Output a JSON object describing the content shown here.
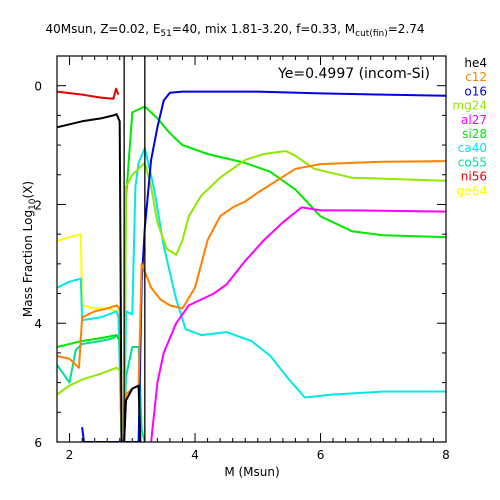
{
  "chart_data": {
    "type": "line",
    "title": {
      "prefix": "40Msun, Z=0.02, E",
      "e_sub": "51",
      "mid": "=40, mix 1.81-3.20, f=0.33, M",
      "m_sub": "cut(fin)",
      "suffix": "=2.74"
    },
    "xlabel": "M (Msun)",
    "ylabel": {
      "before": "Mass Fraction Log",
      "sub": "10",
      "after": "(X)"
    },
    "annotation": "Ye=0.4997 (incom-Si)",
    "xlim": [
      1.8,
      8.0
    ],
    "ylim": [
      -6.0,
      0.5
    ],
    "x_major_ticks": [
      2,
      4,
      6,
      8
    ],
    "x_tick_labels": [
      "2",
      "4",
      "6",
      "8"
    ],
    "y_major_ticks": [
      0,
      -2,
      -4,
      -6
    ],
    "y_tick_labels": [
      "0",
      "2",
      "4",
      "6"
    ],
    "vertical_markers": [
      2.87,
      3.2
    ],
    "legend_position": "right-outside",
    "series": [
      {
        "name": "ge64",
        "color": "#ffff00",
        "points": [
          [
            1.8,
            -2.62
          ],
          [
            2.0,
            -2.55
          ],
          [
            2.18,
            -2.5
          ],
          [
            2.2,
            -3.7
          ],
          [
            2.4,
            -3.75
          ],
          [
            2.6,
            -3.75
          ],
          [
            2.75,
            -3.8
          ],
          [
            2.8,
            -3.72
          ]
        ]
      },
      {
        "name": "ni56",
        "color": "#e80000",
        "points": [
          [
            1.8,
            -0.1
          ],
          [
            2.2,
            -0.15
          ],
          [
            2.5,
            -0.2
          ],
          [
            2.7,
            -0.22
          ],
          [
            2.74,
            -0.05
          ],
          [
            2.78,
            -0.15
          ]
        ]
      },
      {
        "name": "co55",
        "color": "#00e090",
        "points": [
          [
            1.8,
            -4.7
          ],
          [
            2.0,
            -5.0
          ],
          [
            2.1,
            -4.45
          ],
          [
            2.2,
            -4.35
          ],
          [
            2.5,
            -4.3
          ],
          [
            2.7,
            -4.25
          ],
          [
            2.75,
            -4.2
          ],
          [
            2.8,
            -4.3
          ],
          [
            2.83,
            -6.0
          ],
          [
            2.87,
            -6.0
          ],
          [
            2.9,
            -4.9
          ],
          [
            3.0,
            -4.4
          ],
          [
            3.1,
            -4.4
          ],
          [
            3.15,
            -5.8
          ],
          [
            3.2,
            -6.0
          ]
        ]
      },
      {
        "name": "ca40",
        "color": "#00e8e8",
        "points": [
          [
            1.8,
            -3.4
          ],
          [
            2.0,
            -3.3
          ],
          [
            2.18,
            -3.25
          ],
          [
            2.2,
            -3.95
          ],
          [
            2.5,
            -3.9
          ],
          [
            2.75,
            -3.8
          ],
          [
            2.78,
            -3.9
          ],
          [
            2.83,
            -6.0
          ],
          [
            2.87,
            -6.0
          ],
          [
            2.9,
            -3.8
          ],
          [
            3.0,
            -3.85
          ],
          [
            3.05,
            -1.7
          ],
          [
            3.1,
            -1.3
          ],
          [
            3.2,
            -1.05
          ],
          [
            3.35,
            -1.75
          ],
          [
            3.5,
            -2.7
          ],
          [
            3.7,
            -3.6
          ],
          [
            3.85,
            -4.1
          ],
          [
            4.1,
            -4.2
          ],
          [
            4.5,
            -4.15
          ],
          [
            4.9,
            -4.3
          ],
          [
            5.2,
            -4.55
          ],
          [
            5.5,
            -4.95
          ],
          [
            5.75,
            -5.25
          ],
          [
            6.2,
            -5.2
          ],
          [
            7.0,
            -5.15
          ],
          [
            8.0,
            -5.15
          ]
        ]
      },
      {
        "name": "si28",
        "color": "#00e800",
        "points": [
          [
            1.8,
            -4.4
          ],
          [
            2.2,
            -4.3
          ],
          [
            2.5,
            -4.25
          ],
          [
            2.75,
            -4.2
          ],
          [
            2.8,
            -4.3
          ],
          [
            2.83,
            -6.0
          ],
          [
            2.87,
            -6.0
          ],
          [
            2.9,
            -1.9
          ],
          [
            3.0,
            -0.45
          ],
          [
            3.2,
            -0.35
          ],
          [
            3.4,
            -0.55
          ],
          [
            3.6,
            -0.8
          ],
          [
            3.8,
            -1.0
          ],
          [
            4.2,
            -1.15
          ],
          [
            4.8,
            -1.3
          ],
          [
            5.2,
            -1.45
          ],
          [
            5.6,
            -1.75
          ],
          [
            6.0,
            -2.2
          ],
          [
            6.5,
            -2.45
          ],
          [
            7.0,
            -2.52
          ],
          [
            8.0,
            -2.55
          ]
        ]
      },
      {
        "name": "al27",
        "color": "#ff00ff",
        "points": [
          [
            3.3,
            -6.0
          ],
          [
            3.4,
            -5.0
          ],
          [
            3.5,
            -4.5
          ],
          [
            3.7,
            -4.0
          ],
          [
            3.9,
            -3.7
          ],
          [
            4.1,
            -3.6
          ],
          [
            4.3,
            -3.5
          ],
          [
            4.5,
            -3.35
          ],
          [
            4.8,
            -2.95
          ],
          [
            5.1,
            -2.6
          ],
          [
            5.4,
            -2.3
          ],
          [
            5.7,
            -2.05
          ],
          [
            6.0,
            -2.1
          ],
          [
            6.5,
            -2.1
          ],
          [
            8.0,
            -2.12
          ]
        ]
      },
      {
        "name": "mg24",
        "color": "#90e800",
        "points": [
          [
            1.8,
            -5.2
          ],
          [
            2.0,
            -5.05
          ],
          [
            2.2,
            -4.95
          ],
          [
            2.5,
            -4.85
          ],
          [
            2.75,
            -4.75
          ],
          [
            2.8,
            -4.8
          ],
          [
            2.83,
            -6.0
          ],
          [
            2.87,
            -6.0
          ],
          [
            2.9,
            -1.7
          ],
          [
            3.0,
            -1.5
          ],
          [
            3.1,
            -1.4
          ],
          [
            3.2,
            -1.3
          ],
          [
            3.3,
            -1.7
          ],
          [
            3.4,
            -2.3
          ],
          [
            3.55,
            -2.75
          ],
          [
            3.7,
            -2.85
          ],
          [
            3.8,
            -2.6
          ],
          [
            3.9,
            -2.2
          ],
          [
            4.1,
            -1.85
          ],
          [
            4.4,
            -1.55
          ],
          [
            4.8,
            -1.25
          ],
          [
            5.1,
            -1.15
          ],
          [
            5.45,
            -1.1
          ],
          [
            5.6,
            -1.18
          ],
          [
            5.9,
            -1.4
          ],
          [
            6.5,
            -1.55
          ],
          [
            8.0,
            -1.6
          ]
        ]
      },
      {
        "name": "o16",
        "color": "#0000e8",
        "points": [
          [
            2.2,
            -5.75
          ],
          [
            2.23,
            -6.0
          ],
          [
            3.1,
            -6.0
          ],
          [
            3.15,
            -3.3
          ],
          [
            3.2,
            -2.4
          ],
          [
            3.3,
            -1.25
          ],
          [
            3.4,
            -0.7
          ],
          [
            3.5,
            -0.25
          ],
          [
            3.6,
            -0.12
          ],
          [
            3.8,
            -0.1
          ],
          [
            5.0,
            -0.1
          ],
          [
            6.0,
            -0.13
          ],
          [
            7.0,
            -0.15
          ],
          [
            8.0,
            -0.17
          ]
        ]
      },
      {
        "name": "c12",
        "color": "#ff8000",
        "points": [
          [
            1.8,
            -4.55
          ],
          [
            2.0,
            -4.6
          ],
          [
            2.15,
            -4.75
          ],
          [
            2.2,
            -3.9
          ],
          [
            2.4,
            -3.8
          ],
          [
            2.6,
            -3.75
          ],
          [
            2.75,
            -3.7
          ],
          [
            2.8,
            -3.75
          ],
          [
            2.83,
            -6.0
          ],
          [
            2.87,
            -6.0
          ],
          [
            2.9,
            -5.2
          ],
          [
            3.0,
            -5.1
          ],
          [
            3.1,
            -5.05
          ],
          [
            3.15,
            -3.0
          ],
          [
            3.3,
            -3.4
          ],
          [
            3.45,
            -3.6
          ],
          [
            3.6,
            -3.7
          ],
          [
            3.8,
            -3.75
          ],
          [
            4.0,
            -3.4
          ],
          [
            4.2,
            -2.6
          ],
          [
            4.4,
            -2.2
          ],
          [
            4.6,
            -2.05
          ],
          [
            4.8,
            -1.95
          ],
          [
            5.0,
            -1.8
          ],
          [
            5.3,
            -1.6
          ],
          [
            5.6,
            -1.4
          ],
          [
            6.0,
            -1.32
          ],
          [
            6.5,
            -1.3
          ],
          [
            7.0,
            -1.28
          ],
          [
            8.0,
            -1.27
          ]
        ]
      },
      {
        "name": "he4",
        "color": "#000000",
        "points": [
          [
            1.8,
            -0.7
          ],
          [
            2.0,
            -0.65
          ],
          [
            2.2,
            -0.6
          ],
          [
            2.5,
            -0.55
          ],
          [
            2.7,
            -0.5
          ],
          [
            2.75,
            -0.48
          ],
          [
            2.8,
            -0.6
          ],
          [
            2.83,
            -6.0
          ],
          [
            2.87,
            -6.0
          ],
          [
            2.9,
            -5.3
          ],
          [
            3.0,
            -5.1
          ],
          [
            3.1,
            -5.05
          ],
          [
            3.13,
            -6.0
          ]
        ]
      }
    ]
  }
}
